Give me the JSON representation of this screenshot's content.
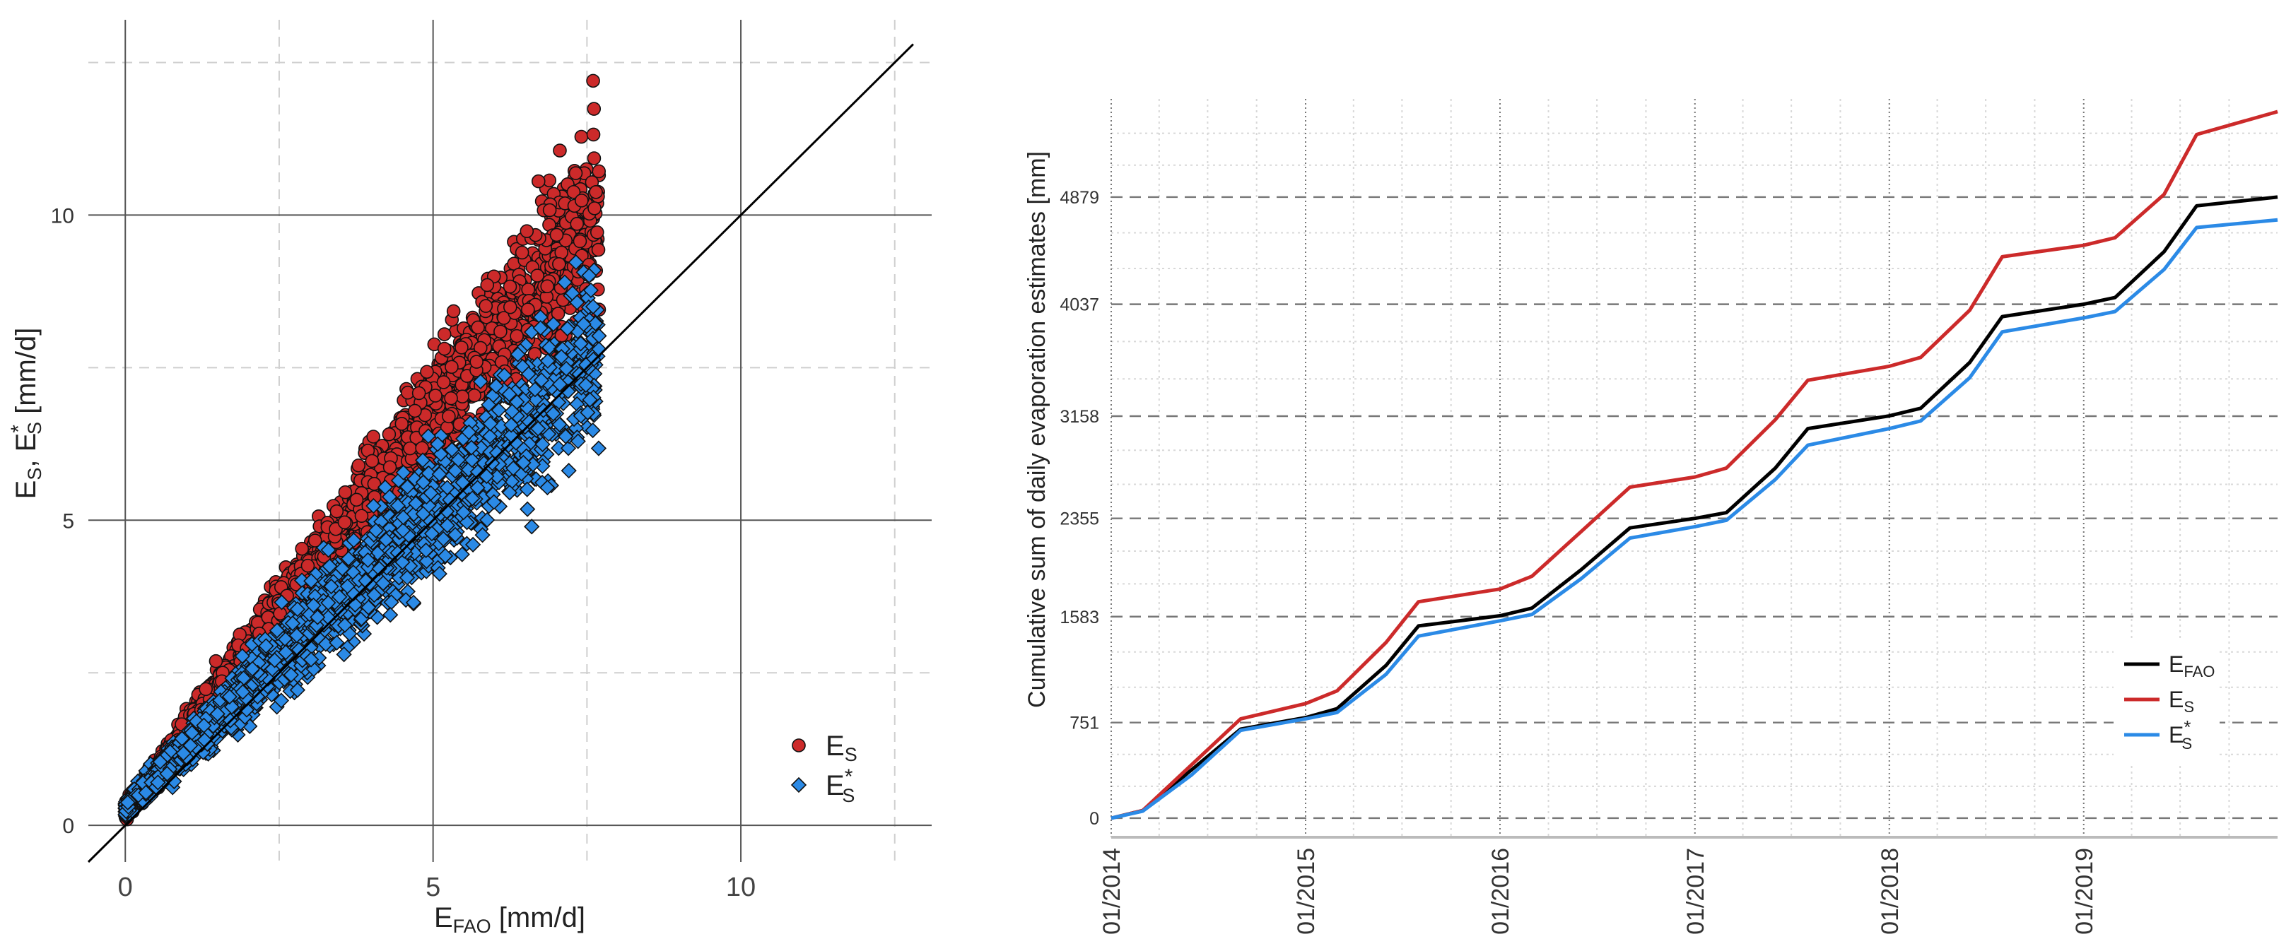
{
  "chart_data": [
    {
      "type": "scatter",
      "xlabel": "E_FAO [mm/d]",
      "xlabel_parts": {
        "base": "E",
        "sub": "FAO",
        "rest": " [mm/d]"
      },
      "ylabel": "E_S, E*_S [mm/d]",
      "xlim": [
        -0.6,
        13.1
      ],
      "ylim": [
        -0.6,
        13.2
      ],
      "x_ticks": [
        "0",
        "5",
        "10"
      ],
      "y_ticks": [
        "0",
        "5",
        "10"
      ],
      "grid": true,
      "reference_line": "1:1 line",
      "legend_position": "bottom-right",
      "series": [
        {
          "name": "E_S",
          "legend_base": "E",
          "legend_sub": "S",
          "legend_sup": "",
          "marker": "circle",
          "color": "#cc2a2a",
          "approx_points": 2190,
          "trend": {
            "x_max": 7.7,
            "slope_mean": 1.28,
            "intercept": 0.25,
            "notable_max": [
              7.6,
              12.2
            ]
          }
        },
        {
          "name": "E*_S",
          "legend_base": "E",
          "legend_sub": "S",
          "legend_sup": "*",
          "marker": "diamond",
          "color": "#2b8ae6",
          "approx_points": 2190,
          "trend": {
            "x_max": 7.7,
            "slope_mean": 0.98,
            "intercept": 0.3,
            "notable_max": [
              7.6,
              8.5
            ]
          }
        }
      ]
    },
    {
      "type": "line",
      "ylabel": "Cumulative sum of daily evaporation estimates [mm]",
      "x_ticks": [
        "01/2014",
        "01/2015",
        "01/2016",
        "01/2017",
        "01/2018",
        "01/2019"
      ],
      "y_ticks": [
        "0",
        "751",
        "1583",
        "2355",
        "3158",
        "4037",
        "4879"
      ],
      "xlim": [
        "2014-01-01",
        "2019-12-31"
      ],
      "ylim": [
        -150,
        5650
      ],
      "grid": true,
      "legend_position": "right",
      "series": [
        {
          "name": "E_FAO",
          "legend_base": "E",
          "legend_sub": "FAO",
          "legend_sup": "",
          "color": "#000000",
          "x": [
            "2014-01-01",
            "2014-03-01",
            "2014-06-01",
            "2014-09-01",
            "2015-01-01",
            "2015-03-01",
            "2015-06-01",
            "2015-08-01",
            "2016-01-01",
            "2016-03-01",
            "2016-06-01",
            "2016-09-01",
            "2017-01-01",
            "2017-03-01",
            "2017-06-01",
            "2017-08-01",
            "2018-01-01",
            "2018-03-01",
            "2018-06-01",
            "2018-08-01",
            "2019-01-01",
            "2019-03-01",
            "2019-06-01",
            "2019-08-01",
            "2019-12-31"
          ],
          "y": [
            0,
            60,
            380,
            700,
            790,
            860,
            1200,
            1510,
            1590,
            1650,
            1950,
            2280,
            2355,
            2400,
            2750,
            3060,
            3160,
            3220,
            3580,
            3940,
            4037,
            4090,
            4450,
            4810,
            4879
          ]
        },
        {
          "name": "E_S",
          "legend_base": "E",
          "legend_sub": "S",
          "legend_sup": "",
          "color": "#cc2a2a",
          "x": [
            "2014-01-01",
            "2014-03-01",
            "2014-06-01",
            "2014-09-01",
            "2015-01-01",
            "2015-03-01",
            "2015-06-01",
            "2015-08-01",
            "2016-01-01",
            "2016-03-01",
            "2016-06-01",
            "2016-09-01",
            "2017-01-01",
            "2017-03-01",
            "2017-06-01",
            "2017-08-01",
            "2018-01-01",
            "2018-03-01",
            "2018-06-01",
            "2018-08-01",
            "2019-01-01",
            "2019-03-01",
            "2019-06-01",
            "2019-08-01",
            "2019-12-31"
          ],
          "y": [
            0,
            60,
            420,
            780,
            900,
            1000,
            1380,
            1700,
            1800,
            1900,
            2250,
            2600,
            2680,
            2750,
            3130,
            3440,
            3550,
            3620,
            3990,
            4410,
            4500,
            4560,
            4900,
            5370,
            5550
          ]
        },
        {
          "name": "E*_S",
          "legend_base": "E",
          "legend_sub": "S",
          "legend_sup": "*",
          "color": "#2b8ae6",
          "x": [
            "2014-01-01",
            "2014-03-01",
            "2014-06-01",
            "2014-09-01",
            "2015-01-01",
            "2015-03-01",
            "2015-06-01",
            "2015-08-01",
            "2016-01-01",
            "2016-03-01",
            "2016-06-01",
            "2016-09-01",
            "2017-01-01",
            "2017-03-01",
            "2017-06-01",
            "2017-08-01",
            "2018-01-01",
            "2018-03-01",
            "2018-06-01",
            "2018-08-01",
            "2019-01-01",
            "2019-03-01",
            "2019-06-01",
            "2019-08-01",
            "2019-12-31"
          ],
          "y": [
            0,
            55,
            340,
            690,
            780,
            830,
            1130,
            1430,
            1550,
            1600,
            1880,
            2200,
            2290,
            2340,
            2660,
            2930,
            3060,
            3120,
            3460,
            3820,
            3930,
            3980,
            4310,
            4640,
            4700
          ]
        }
      ]
    }
  ]
}
